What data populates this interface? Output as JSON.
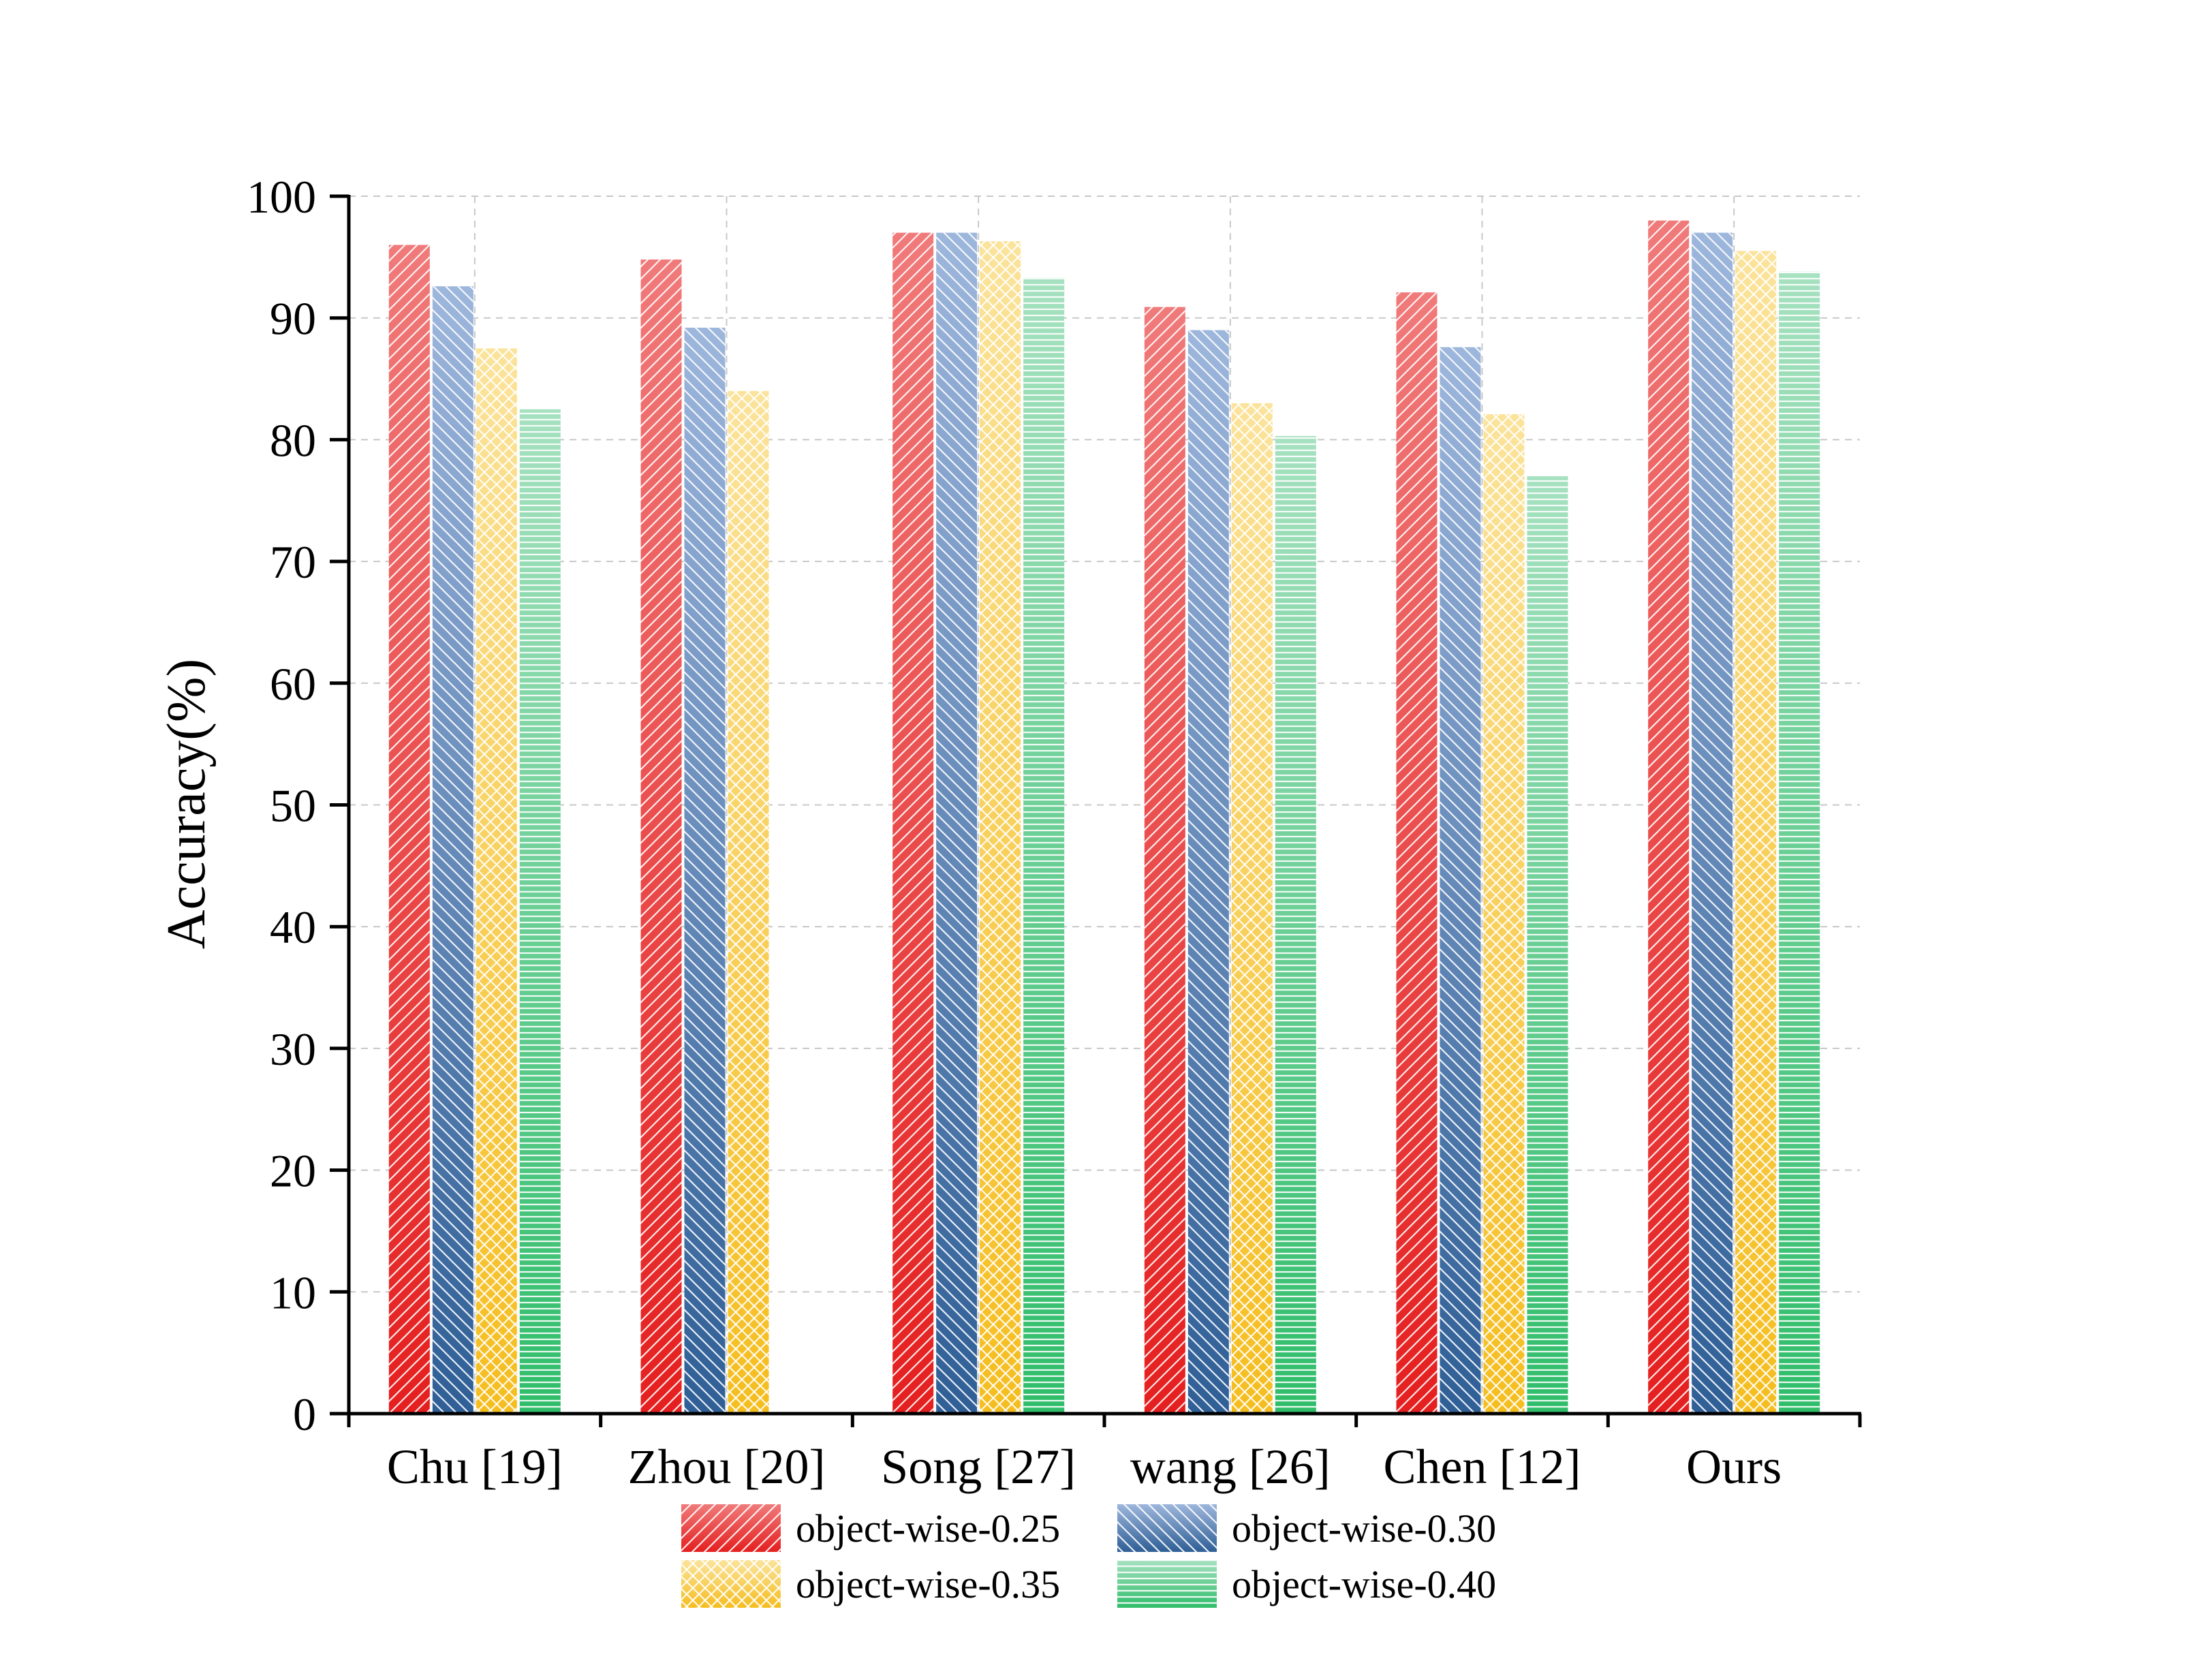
{
  "chart_data": {
    "type": "bar",
    "title": "",
    "xlabel": "",
    "ylabel": "Accuracy(%)",
    "ylim": [
      0,
      100
    ],
    "yticks": [
      0,
      10,
      20,
      30,
      40,
      50,
      60,
      70,
      80,
      90,
      100
    ],
    "grid": true,
    "legend_position": "bottom",
    "categories": [
      "Chu [19]",
      "Zhou [20]",
      "Song [27]",
      "wang [26]",
      "Chen [12]",
      "Ours"
    ],
    "series": [
      {
        "name": "object-wise-0.25",
        "color": "#f07a7a",
        "color_bottom": "#e51f1f",
        "pattern": "diagonal-up",
        "values": [
          96.0,
          94.8,
          97.0,
          90.9,
          92.1,
          98.0
        ]
      },
      {
        "name": "object-wise-0.30",
        "color": "#9db6dc",
        "color_bottom": "#2f5f96",
        "pattern": "diagonal-down",
        "values": [
          92.6,
          89.2,
          97.0,
          89.0,
          87.6,
          97.0
        ]
      },
      {
        "name": "object-wise-0.35",
        "color": "#fbe39b",
        "color_bottom": "#f5bd1e",
        "pattern": "crosshatch",
        "values": [
          87.5,
          84.0,
          null,
          83.0,
          82.1,
          95.5
        ]
      },
      {
        "name": "object-wise-0.40",
        "color": "#a6e1c0",
        "color_bottom": "#2fbd6a",
        "pattern": "horizontal",
        "values": [
          82.5,
          null,
          93.3,
          80.3,
          77.0,
          93.8
        ]
      }
    ],
    "song_extra_note": "",
    "extra_values": {
      "Song [27]": {
        "object-wise-0.35": 96.3
      }
    }
  }
}
